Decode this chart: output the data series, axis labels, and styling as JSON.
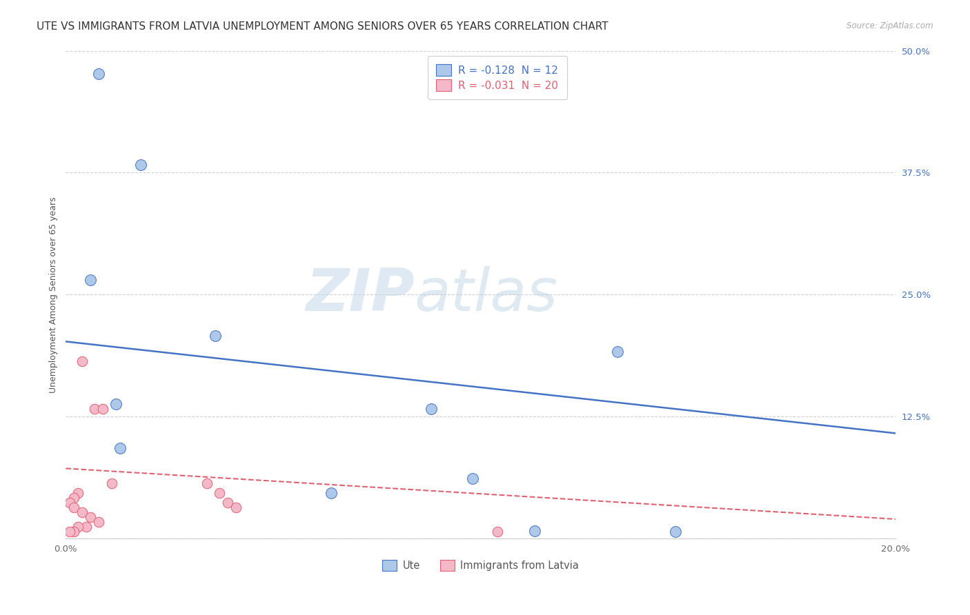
{
  "title": "UTE VS IMMIGRANTS FROM LATVIA UNEMPLOYMENT AMONG SENIORS OVER 65 YEARS CORRELATION CHART",
  "source": "Source: ZipAtlas.com",
  "ylabel": "Unemployment Among Seniors over 65 years",
  "xlim": [
    0.0,
    0.2
  ],
  "ylim": [
    0.0,
    0.5
  ],
  "xticks": [
    0.0,
    0.05,
    0.1,
    0.15,
    0.2
  ],
  "xtick_labels": [
    "0.0%",
    "",
    "",
    "",
    "20.0%"
  ],
  "yticks": [
    0.0,
    0.125,
    0.25,
    0.375,
    0.5
  ],
  "ytick_labels": [
    "",
    "12.5%",
    "25.0%",
    "37.5%",
    "50.0%"
  ],
  "watermark_zip": "ZIP",
  "watermark_atlas": "atlas",
  "ute_color": "#adc8e8",
  "immigrants_color": "#f5b8c8",
  "ute_line_color": "#4472c4",
  "immigrants_line_color": "#e06070",
  "ute_R": "-0.128",
  "ute_N": "12",
  "immigrants_R": "-0.031",
  "immigrants_N": "20",
  "ute_scatter_x": [
    0.008,
    0.018,
    0.006,
    0.036,
    0.012,
    0.013,
    0.088,
    0.064,
    0.098,
    0.133,
    0.113,
    0.147
  ],
  "ute_scatter_y": [
    0.476,
    0.383,
    0.265,
    0.208,
    0.138,
    0.093,
    0.133,
    0.047,
    0.062,
    0.192,
    0.008,
    0.007
  ],
  "immigrants_scatter_x": [
    0.004,
    0.007,
    0.009,
    0.011,
    0.003,
    0.002,
    0.001,
    0.002,
    0.004,
    0.006,
    0.008,
    0.005,
    0.003,
    0.002,
    0.001,
    0.034,
    0.037,
    0.039,
    0.041,
    0.104
  ],
  "immigrants_scatter_y": [
    0.182,
    0.133,
    0.133,
    0.057,
    0.047,
    0.042,
    0.037,
    0.032,
    0.027,
    0.022,
    0.017,
    0.012,
    0.012,
    0.007,
    0.007,
    0.057,
    0.047,
    0.037,
    0.032,
    0.007
  ],
  "ute_trend_x0": 0.0,
  "ute_trend_x1": 0.2,
  "ute_trend_y0": 0.202,
  "ute_trend_y1": 0.108,
  "imm_trend_x0": 0.0,
  "imm_trend_x1": 0.2,
  "imm_trend_y0": 0.072,
  "imm_trend_y1": 0.02,
  "background_color": "#ffffff",
  "grid_color": "#d0d0d0",
  "title_fontsize": 11,
  "axis_label_fontsize": 9,
  "tick_fontsize": 9.5
}
